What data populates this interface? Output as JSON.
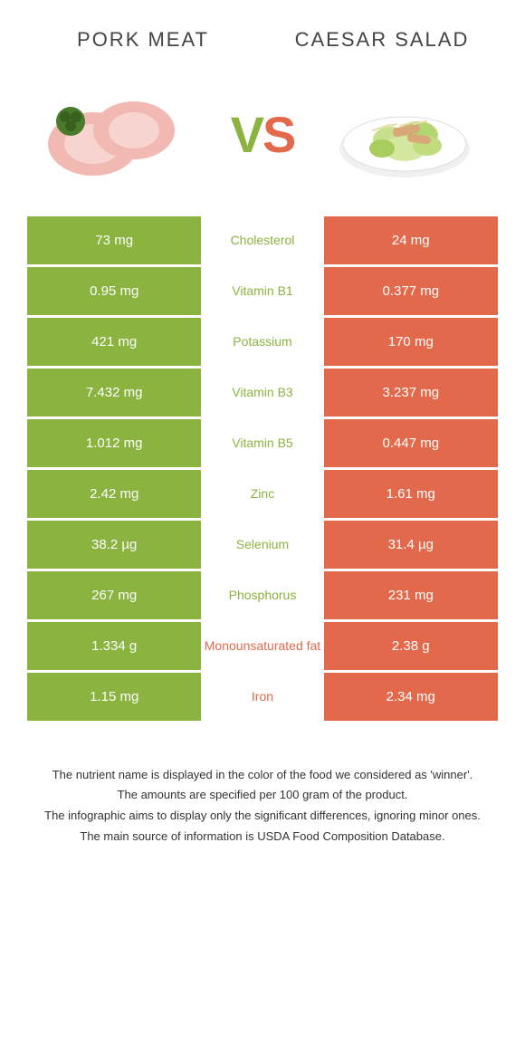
{
  "colors": {
    "left": "#8ab33f",
    "right": "#e2694b",
    "rowGap": "#ffffff",
    "textOnColor": "#ffffff"
  },
  "header": {
    "leftTitle": "Pork meat",
    "rightTitle": "Caesar salad",
    "vsV": "V",
    "vsS": "S"
  },
  "rows": [
    {
      "label": "Cholesterol",
      "left": "73 mg",
      "right": "24 mg",
      "winner": "left"
    },
    {
      "label": "Vitamin B1",
      "left": "0.95 mg",
      "right": "0.377 mg",
      "winner": "left"
    },
    {
      "label": "Potassium",
      "left": "421 mg",
      "right": "170 mg",
      "winner": "left"
    },
    {
      "label": "Vitamin B3",
      "left": "7.432 mg",
      "right": "3.237 mg",
      "winner": "left"
    },
    {
      "label": "Vitamin B5",
      "left": "1.012 mg",
      "right": "0.447 mg",
      "winner": "left"
    },
    {
      "label": "Zinc",
      "left": "2.42 mg",
      "right": "1.61 mg",
      "winner": "left"
    },
    {
      "label": "Selenium",
      "left": "38.2 µg",
      "right": "31.4 µg",
      "winner": "left"
    },
    {
      "label": "Phosphorus",
      "left": "267 mg",
      "right": "231 mg",
      "winner": "left"
    },
    {
      "label": "Monounsaturated fat",
      "left": "1.334 g",
      "right": "2.38 g",
      "winner": "right"
    },
    {
      "label": "Iron",
      "left": "1.15 mg",
      "right": "2.34 mg",
      "winner": "right"
    }
  ],
  "notes": [
    "The nutrient name is displayed in the color of the food we considered as 'winner'.",
    "The amounts are specified per 100 gram of the product.",
    "The infographic aims to display only the significant differences, ignoring minor ones.",
    "The main source of information is USDA Food Composition Database."
  ]
}
